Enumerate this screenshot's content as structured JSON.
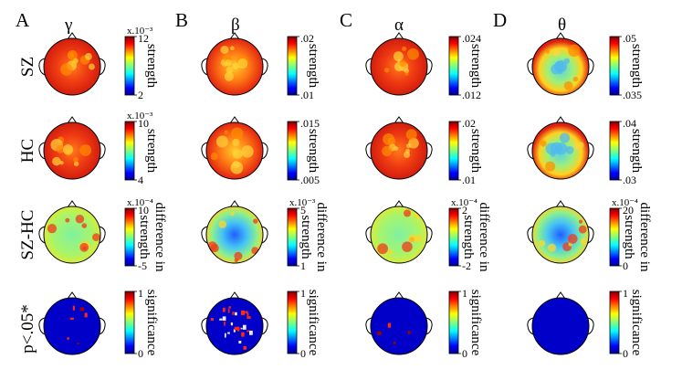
{
  "figure": {
    "panels": [
      {
        "letter": "A",
        "band": "γ"
      },
      {
        "letter": "B",
        "band": "β"
      },
      {
        "letter": "C",
        "band": "α"
      },
      {
        "letter": "D",
        "band": "θ"
      }
    ],
    "rows": [
      {
        "label": "SZ",
        "map": "strength"
      },
      {
        "label": "HC",
        "map": "strength"
      },
      {
        "label": "SZ-HC",
        "map": "difference"
      },
      {
        "label": "p<.05*",
        "map": "significance"
      }
    ],
    "colorbar_titles": {
      "strength": "strength",
      "difference_line1": "difference in",
      "difference_line2": "strength",
      "significance": "significance"
    },
    "colorbars": [
      [
        {
          "exp": "x.10⁻³",
          "top": "12",
          "bottom": "2"
        },
        {
          "exp": "",
          "top": ".02",
          "bottom": ".01"
        },
        {
          "exp": "",
          "top": ".024",
          "bottom": ".012"
        },
        {
          "exp": "",
          "top": ".05",
          "bottom": ".035"
        }
      ],
      [
        {
          "exp": "x.10⁻³",
          "top": "10",
          "bottom": "4"
        },
        {
          "exp": "",
          "top": ".015",
          "bottom": ".005"
        },
        {
          "exp": "",
          "top": ".02",
          "bottom": ".01"
        },
        {
          "exp": "",
          "top": ".04",
          "bottom": ".03"
        }
      ],
      [
        {
          "exp": "x.10⁻⁴",
          "top": "10",
          "bottom": "-5"
        },
        {
          "exp": "x.10⁻³",
          "top": "5",
          "bottom": "1"
        },
        {
          "exp": "x.10⁻⁴",
          "top": "2",
          "bottom": "-2"
        },
        {
          "exp": "x.10⁻⁴",
          "top": "20",
          "bottom": "0"
        }
      ],
      [
        {
          "exp": "",
          "top": "1",
          "bottom": "0"
        },
        {
          "exp": "",
          "top": "1",
          "bottom": "0"
        },
        {
          "exp": "",
          "top": "1",
          "bottom": "0"
        },
        {
          "exp": "",
          "top": "1",
          "bottom": "0"
        }
      ]
    ],
    "map_colors": {
      "strength_red": "#e61e10",
      "strength_orange": "#ff8c00",
      "difference_green": "#7ee07e",
      "difference_blue": "#1f4fff",
      "significance_blue": "#0000c8",
      "significance_red": "#a00000"
    }
  }
}
